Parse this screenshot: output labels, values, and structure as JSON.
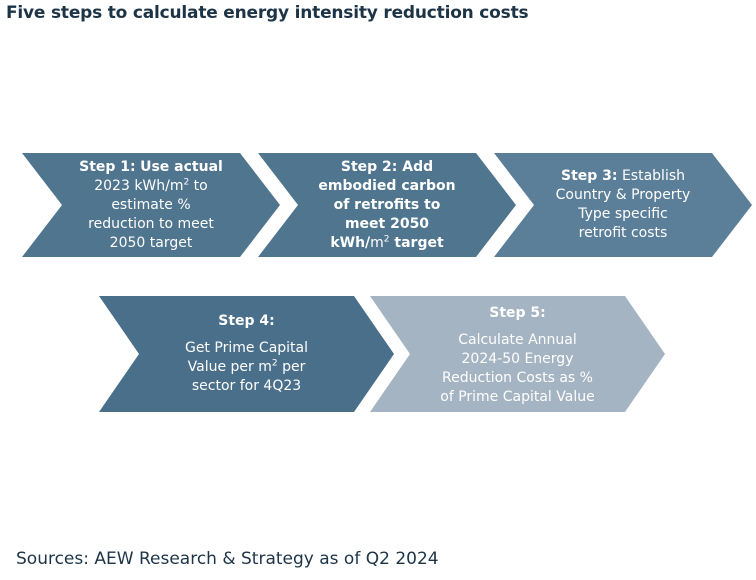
{
  "title": "Five steps to calculate energy intensity reduction costs",
  "colors": {
    "dark": "#50758f",
    "darkest": "#4a6f8a",
    "light": "#a4b4c3",
    "title": "#1d3447"
  },
  "steps": [
    {
      "heading": "Step 1:",
      "line1_rest": "Use actual",
      "line2_a": "2023 kWh/m",
      "line2_sup": "2",
      "line2_b": " to",
      "line3": "estimate %",
      "line4": "reduction to meet",
      "line5": "2050 target"
    },
    {
      "heading": "Step 2:",
      "line1_rest": "Add",
      "line2": "embodied carbon",
      "line3": "of retrofits to",
      "line4": "meet 2050",
      "line5_a": "kWh/",
      "line5_m": "m",
      "line5_sup": "2",
      "line5_b": " target"
    },
    {
      "heading": "Step 3:",
      "line1_rest": "Establish",
      "line2": "Country & Property",
      "line3": "Type specific",
      "line4": "retrofit costs"
    },
    {
      "heading": "Step 4:",
      "line2": "Get Prime Capital",
      "line3_a": "Value per m",
      "line3_sup": "2",
      "line3_b": " per",
      "line4": "sector for 4Q23"
    },
    {
      "heading": "Step 5:",
      "line2": "Calculate Annual",
      "line3": "2024-50 Energy",
      "line4": "Reduction Costs as %",
      "line5": "of Prime Capital Value"
    }
  ],
  "source": "Sources: AEW Research & Strategy as of Q2 2024"
}
